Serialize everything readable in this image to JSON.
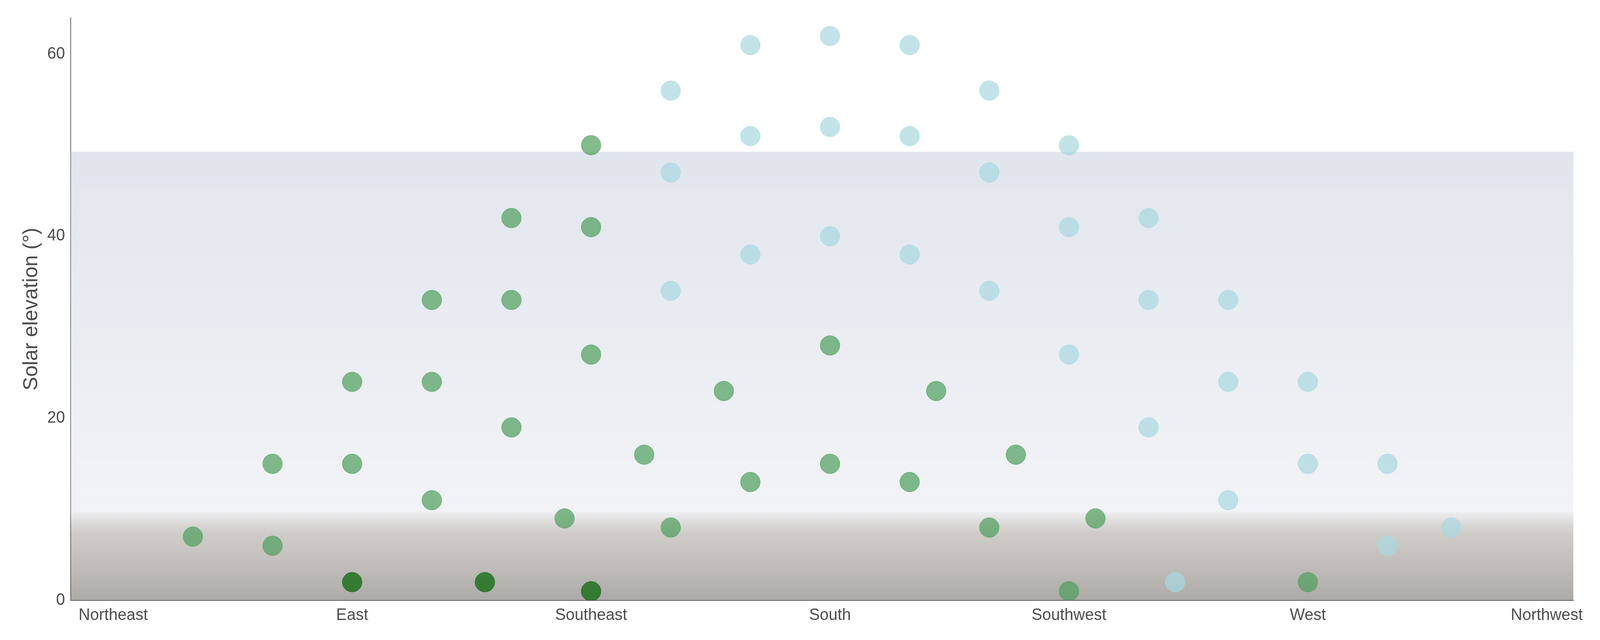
{
  "chart_data": {
    "type": "scatter",
    "y_label": "Solar elevation (°)",
    "xlim": [
      37,
      320
    ],
    "xticks": [
      {
        "value": 45,
        "label": "Northeast"
      },
      {
        "value": 90,
        "label": "East"
      },
      {
        "value": 135,
        "label": "Southeast"
      },
      {
        "value": 180,
        "label": "South"
      },
      {
        "value": 225,
        "label": "Southwest"
      },
      {
        "value": 270,
        "label": "West"
      },
      {
        "value": 315,
        "label": "Northwest"
      }
    ],
    "ylim": [
      0,
      64
    ],
    "yticks": [
      0,
      20,
      40,
      60
    ],
    "grid": false,
    "marker": "circle",
    "series": [
      {
        "x": [
          60,
          75,
          90,
          105,
          120,
          135,
          150,
          165,
          180,
          195,
          210,
          225,
          240,
          255,
          270,
          285,
          297
        ],
        "values": [
          7,
          15,
          24,
          33,
          42,
          50,
          56,
          61,
          62,
          61,
          56,
          50,
          42,
          33,
          24,
          15,
          8
        ],
        "colors": [
          "#4e9e5c",
          "#4e9e5c",
          "#4e9e5c",
          "#4e9e5c",
          "#4e9e5c",
          "#4e9e5c",
          "#a8d8e0",
          "#a8d8e0",
          "#a8d8e0",
          "#a8d8e0",
          "#a8d8e0",
          "#a8d8e0",
          "#a8d8e0",
          "#a8d8e0",
          "#a8d8e0",
          "#a8d8e0",
          "#a8d8e0"
        ]
      },
      {
        "x": [
          75,
          90,
          105,
          120,
          135,
          150,
          165,
          180,
          195,
          210,
          225,
          240,
          255,
          270,
          285
        ],
        "values": [
          6,
          15,
          24,
          33,
          41,
          47,
          51,
          52,
          51,
          47,
          41,
          33,
          24,
          15,
          6
        ],
        "colors": [
          "#4e9e5c",
          "#4e9e5c",
          "#4e9e5c",
          "#4e9e5c",
          "#4e9e5c",
          "#a8d8e0",
          "#a8d8e0",
          "#a8d8e0",
          "#a8d8e0",
          "#a8d8e0",
          "#a8d8e0",
          "#a8d8e0",
          "#a8d8e0",
          "#a8d8e0",
          "#a8d8e0"
        ]
      },
      {
        "x": [
          90,
          105,
          120,
          135,
          150,
          165,
          180,
          195,
          210,
          225,
          240,
          255,
          270
        ],
        "values": [
          2,
          11,
          19,
          27,
          34,
          38,
          40,
          38,
          34,
          27,
          19,
          11,
          2
        ],
        "colors": [
          "#006400",
          "#4e9e5c",
          "#4e9e5c",
          "#4e9e5c",
          "#a8d8e0",
          "#a8d8e0",
          "#a8d8e0",
          "#a8d8e0",
          "#a8d8e0",
          "#a8d8e0",
          "#a8d8e0",
          "#a8d8e0",
          "#4e9e5c"
        ]
      },
      {
        "x": [
          115,
          130,
          145,
          160,
          180,
          200,
          215,
          230,
          245
        ],
        "values": [
          2,
          9,
          16,
          23,
          28,
          23,
          16,
          9,
          2
        ],
        "colors": [
          "#006400",
          "#4e9e5c",
          "#4e9e5c",
          "#4e9e5c",
          "#4e9e5c",
          "#4e9e5c",
          "#4e9e5c",
          "#4e9e5c",
          "#a8d8e0"
        ]
      },
      {
        "x": [
          135,
          150,
          165,
          180,
          195,
          210,
          225
        ],
        "values": [
          1,
          8,
          13,
          15,
          13,
          8,
          1
        ],
        "colors": [
          "#006400",
          "#4e9e5c",
          "#4e9e5c",
          "#4e9e5c",
          "#4e9e5c",
          "#4e9e5c",
          "#4e9e5c"
        ]
      }
    ]
  }
}
